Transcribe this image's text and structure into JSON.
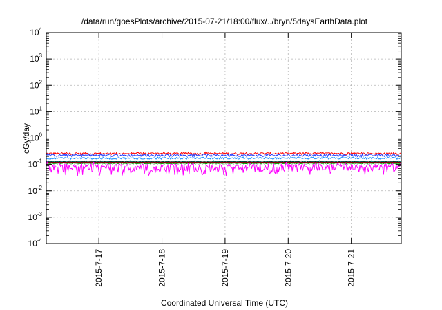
{
  "chart_data": {
    "type": "line",
    "title": "/data/run/goesPlots/archive/2015-07-21/18:00/flux/../bryn/5daysEarthData.plot",
    "xlabel": "Coordinated Universal Time (UTC)",
    "ylabel": "cGy/day",
    "yscale": "log",
    "ylim": [
      0.0001,
      10000
    ],
    "y_ticks": [
      {
        "base": "10",
        "exp": "-4",
        "value": 0.0001
      },
      {
        "base": "10",
        "exp": "-3",
        "value": 0.001
      },
      {
        "base": "10",
        "exp": "-2",
        "value": 0.01
      },
      {
        "base": "10",
        "exp": "-1",
        "value": 0.1
      },
      {
        "base": "10",
        "exp": "0",
        "value": 1
      },
      {
        "base": "10",
        "exp": "1",
        "value": 10
      },
      {
        "base": "10",
        "exp": "2",
        "value": 100
      },
      {
        "base": "10",
        "exp": "3",
        "value": 1000
      },
      {
        "base": "10",
        "exp": "4",
        "value": 10000
      }
    ],
    "xlim": [
      "2015-07-16T04:00",
      "2015-07-21T19:00"
    ],
    "x_ticks": [
      {
        "label": "2015-7-17",
        "value": "2015-07-17T00:00"
      },
      {
        "label": "2015-7-18",
        "value": "2015-07-18T00:00"
      },
      {
        "label": "2015-7-19",
        "value": "2015-07-19T00:00"
      },
      {
        "label": "2015-7-20",
        "value": "2015-07-20T00:00"
      },
      {
        "label": "2015-7-21",
        "value": "2015-07-21T00:00"
      }
    ],
    "grid": true,
    "series": [
      {
        "color": "#ff0000",
        "level": 0.26,
        "spread": 0.09
      },
      {
        "color": "#1e3cff",
        "level": 0.22,
        "spread": 0.1
      },
      {
        "color": "#1e90ff",
        "level": 0.17,
        "spread": 0.08
      },
      {
        "color": "#00c8c8",
        "level": 0.13,
        "spread": 0.06
      },
      {
        "color": "#00a000",
        "level": 0.11,
        "spread": 0.03
      },
      {
        "color": "#000000",
        "level": 0.125,
        "spread": 0.01
      },
      {
        "color": "#8b0000",
        "level": 0.12,
        "spread": 0.01
      },
      {
        "color": "#ff00ff",
        "level": 0.08,
        "spread": 0.35
      }
    ]
  }
}
